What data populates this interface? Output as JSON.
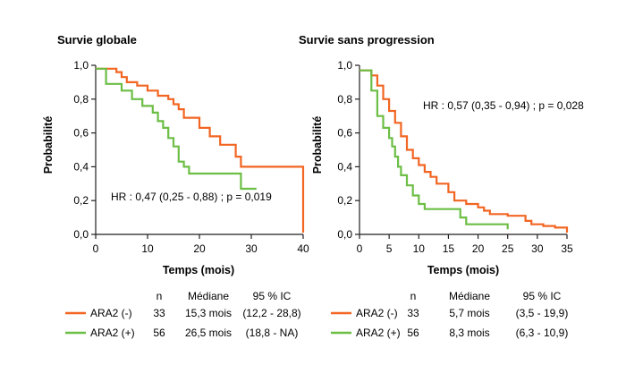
{
  "chart_data": [
    {
      "type": "line",
      "title": "Survie globale",
      "xlabel": "Temps (mois)",
      "ylabel": "Probabilité",
      "xlim": [
        0,
        40
      ],
      "ylim": [
        0,
        1
      ],
      "x_ticks": [
        "0",
        "10",
        "20",
        "30",
        "40"
      ],
      "y_ticks": [
        "0,0",
        "0,2",
        "0,4",
        "0,6",
        "0,8",
        "1,0"
      ],
      "annotation": "HR : 0,47 (0,25 - 0,88) ; p = 0,019",
      "series": [
        {
          "name": "ARA2 (-)",
          "color": "#f26522",
          "steps": [
            [
              0,
              0.98
            ],
            [
              2,
              0.98
            ],
            [
              4,
              0.96
            ],
            [
              5,
              0.93
            ],
            [
              6,
              0.9
            ],
            [
              8,
              0.88
            ],
            [
              10,
              0.85
            ],
            [
              12,
              0.82
            ],
            [
              14,
              0.8
            ],
            [
              15,
              0.77
            ],
            [
              16,
              0.74
            ],
            [
              17,
              0.69
            ],
            [
              20,
              0.63
            ],
            [
              22,
              0.58
            ],
            [
              24,
              0.53
            ],
            [
              27,
              0.46
            ],
            [
              28,
              0.4
            ],
            [
              40,
              0.4
            ],
            [
              40,
              0.01
            ]
          ]
        },
        {
          "name": "ARA2 (+)",
          "color": "#6cbe45",
          "steps": [
            [
              0,
              0.98
            ],
            [
              2,
              0.89
            ],
            [
              5,
              0.85
            ],
            [
              7,
              0.8
            ],
            [
              9,
              0.76
            ],
            [
              11,
              0.72
            ],
            [
              12,
              0.67
            ],
            [
              13,
              0.63
            ],
            [
              14,
              0.57
            ],
            [
              15,
              0.52
            ],
            [
              16,
              0.43
            ],
            [
              17,
              0.4
            ],
            [
              18,
              0.36
            ],
            [
              28,
              0.27
            ],
            [
              31,
              0.27
            ]
          ]
        }
      ]
    },
    {
      "type": "line",
      "title": "Survie sans progression",
      "xlabel": "Temps (mois)",
      "ylabel": "Probabilité",
      "xlim": [
        0,
        35
      ],
      "ylim": [
        0,
        1
      ],
      "x_ticks": [
        "0",
        "5",
        "10",
        "15",
        "20",
        "25",
        "30",
        "35"
      ],
      "y_ticks": [
        "0,0",
        "0,2",
        "0,4",
        "0,6",
        "0,8",
        "1,0"
      ],
      "annotation": "HR : 0,57 (0,35 - 0,94) ; p = 0,028",
      "series": [
        {
          "name": "ARA2 (-)",
          "color": "#f26522",
          "steps": [
            [
              0,
              0.97
            ],
            [
              2,
              0.94
            ],
            [
              3,
              0.88
            ],
            [
              4,
              0.8
            ],
            [
              5,
              0.73
            ],
            [
              6,
              0.66
            ],
            [
              7,
              0.58
            ],
            [
              8,
              0.5
            ],
            [
              9,
              0.45
            ],
            [
              10,
              0.41
            ],
            [
              11,
              0.37
            ],
            [
              12,
              0.34
            ],
            [
              13,
              0.3
            ],
            [
              15,
              0.25
            ],
            [
              16,
              0.2
            ],
            [
              18,
              0.18
            ],
            [
              20,
              0.16
            ],
            [
              21,
              0.14
            ],
            [
              22,
              0.12
            ],
            [
              25,
              0.11
            ],
            [
              28,
              0.08
            ],
            [
              29,
              0.06
            ],
            [
              31,
              0.05
            ],
            [
              33,
              0.04
            ],
            [
              35,
              0.01
            ]
          ]
        },
        {
          "name": "ARA2 (+)",
          "color": "#6cbe45",
          "steps": [
            [
              0,
              0.97
            ],
            [
              2,
              0.85
            ],
            [
              3,
              0.7
            ],
            [
              4,
              0.63
            ],
            [
              5,
              0.57
            ],
            [
              5.5,
              0.52
            ],
            [
              6,
              0.46
            ],
            [
              6.5,
              0.4
            ],
            [
              7,
              0.35
            ],
            [
              8,
              0.29
            ],
            [
              9,
              0.23
            ],
            [
              10,
              0.18
            ],
            [
              11,
              0.15
            ],
            [
              17,
              0.1
            ],
            [
              18,
              0.06
            ],
            [
              25,
              0.03
            ]
          ]
        }
      ]
    }
  ],
  "tables": [
    {
      "headers": {
        "n": "n",
        "median": "Médiane",
        "ci": "95 % IC"
      },
      "rows": [
        {
          "label": "ARA2 (-)",
          "n": "33",
          "median": "15,3 mois",
          "ci": "(12,2 - 28,8)",
          "color": "#f26522"
        },
        {
          "label": "ARA2 (+)",
          "n": "56",
          "median": "26,5 mois",
          "ci": "(18,8 - NA)",
          "color": "#6cbe45"
        }
      ]
    },
    {
      "headers": {
        "n": "n",
        "median": "Médiane",
        "ci": "95 % IC"
      },
      "rows": [
        {
          "label": "ARA2 (-)",
          "n": "33",
          "median": "5,7 mois",
          "ci": "(3,5 - 19,9)",
          "color": "#f26522"
        },
        {
          "label": "ARA2 (+)",
          "n": "56",
          "median": "8,3 mois",
          "ci": "(6,3 - 10,9)",
          "color": "#6cbe45"
        }
      ]
    }
  ]
}
